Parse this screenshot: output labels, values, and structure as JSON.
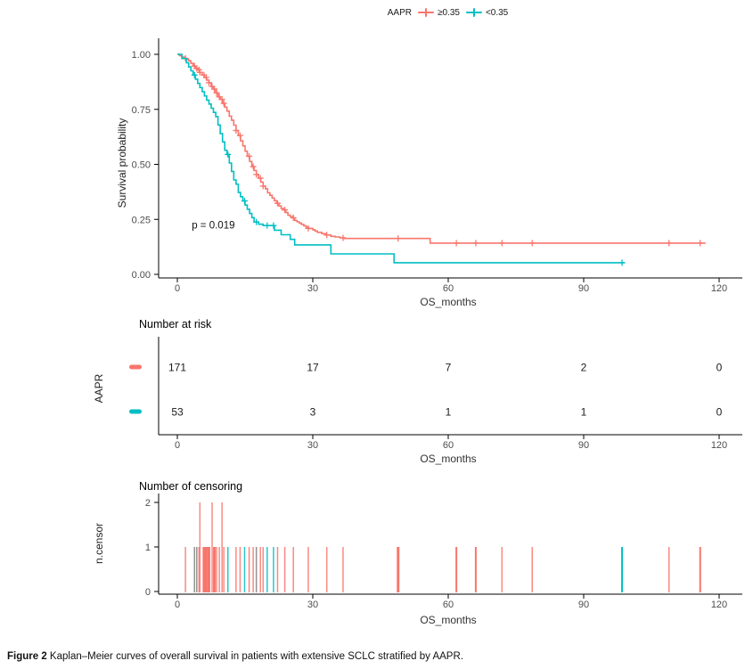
{
  "legend": {
    "title": "AAPR",
    "items": [
      {
        "label": "≥0.35",
        "color": "#F8766D"
      },
      {
        "label": "<0.35",
        "color": "#00BFC4"
      }
    ]
  },
  "colors": {
    "red": "#F8766D",
    "teal": "#00BFC4",
    "gray": "#808080",
    "axis": "#000000",
    "tick_text": "#4d4d4d"
  },
  "labels": {
    "km_ylabel": "Survival probability",
    "km_xlabel": "OS_months",
    "risk_title": "Number at risk",
    "risk_ylabel": "AAPR",
    "risk_xlabel": "OS_months",
    "censor_title": "Number of censoring",
    "censor_ylabel": "n.censor",
    "censor_xlabel": "OS_months"
  },
  "caption": {
    "label": "Figure 2",
    "text": " Kaplan–Meier curves of overall survival in patients with extensive SCLC stratified by AAPR."
  },
  "chart_data": [
    {
      "id": "km",
      "type": "line",
      "step": true,
      "xlabel": "OS_months",
      "ylabel": "Survival probability",
      "xticks": [
        0,
        30,
        60,
        90,
        120
      ],
      "ytick_labels": [
        "0.00",
        "0.25",
        "0.50",
        "0.75",
        "1.00"
      ],
      "ytick_values": [
        0,
        0.25,
        0.5,
        0.75,
        1
      ],
      "xlim": [
        0,
        125
      ],
      "ylim": [
        0,
        1
      ],
      "annotation": {
        "text": "p = 0.019",
        "x": 3.2,
        "y": 0.225
      },
      "series": [
        {
          "name": "≥0.35",
          "color": "#F8766D",
          "points": [
            [
              0,
              1.0
            ],
            [
              0.5,
              0.994
            ],
            [
              1,
              0.988
            ],
            [
              1.5,
              0.982
            ],
            [
              2,
              0.977
            ],
            [
              2.5,
              0.971
            ],
            [
              3,
              0.959
            ],
            [
              3.5,
              0.947
            ],
            [
              4,
              0.936
            ],
            [
              4.5,
              0.93
            ],
            [
              5,
              0.918
            ],
            [
              5.5,
              0.906
            ],
            [
              6,
              0.895
            ],
            [
              6.5,
              0.883
            ],
            [
              7,
              0.871
            ],
            [
              7.5,
              0.854
            ],
            [
              8,
              0.842
            ],
            [
              8.5,
              0.825
            ],
            [
              9,
              0.807
            ],
            [
              9.5,
              0.795
            ],
            [
              10,
              0.777
            ],
            [
              10.5,
              0.76
            ],
            [
              11,
              0.742
            ],
            [
              11.5,
              0.719
            ],
            [
              12,
              0.701
            ],
            [
              12.5,
              0.678
            ],
            [
              13,
              0.654
            ],
            [
              13.5,
              0.631
            ],
            [
              14,
              0.607
            ],
            [
              14.5,
              0.584
            ],
            [
              15,
              0.56
            ],
            [
              15.5,
              0.537
            ],
            [
              16,
              0.513
            ],
            [
              16.5,
              0.49
            ],
            [
              17,
              0.472
            ],
            [
              17.5,
              0.454
            ],
            [
              18,
              0.437
            ],
            [
              18.5,
              0.419
            ],
            [
              19,
              0.401
            ],
            [
              19.5,
              0.389
            ],
            [
              20,
              0.371
            ],
            [
              20.5,
              0.359
            ],
            [
              21,
              0.347
            ],
            [
              21.5,
              0.335
            ],
            [
              22,
              0.323
            ],
            [
              22.5,
              0.311
            ],
            [
              23,
              0.299
            ],
            [
              23.5,
              0.293
            ],
            [
              24,
              0.281
            ],
            [
              24.5,
              0.269
            ],
            [
              25,
              0.263
            ],
            [
              25.5,
              0.257
            ],
            [
              26,
              0.245
            ],
            [
              26.5,
              0.239
            ],
            [
              27,
              0.233
            ],
            [
              27.5,
              0.227
            ],
            [
              28,
              0.221
            ],
            [
              28.5,
              0.215
            ],
            [
              29,
              0.209
            ],
            [
              30,
              0.203
            ],
            [
              30.5,
              0.197
            ],
            [
              31,
              0.191
            ],
            [
              32,
              0.185
            ],
            [
              33,
              0.179
            ],
            [
              34,
              0.173
            ],
            [
              35,
              0.17
            ],
            [
              36,
              0.166
            ],
            [
              37,
              0.163
            ],
            [
              56,
              0.142
            ],
            [
              117,
              0.142
            ]
          ],
          "censors": [
            1.8,
            3.8,
            4.3,
            4.8,
            5.0,
            5.9,
            6.4,
            7.0,
            7.7,
            8.2,
            8.7,
            9.3,
            9.9,
            10.3,
            13.0,
            13.9,
            15.9,
            16.8,
            17.5,
            18.4,
            19.0,
            22.2,
            23.8,
            25.7,
            29.0,
            33.1,
            36.7,
            48.9,
            61.8,
            66.1,
            71.9,
            78.6,
            108.9,
            115.8
          ]
        },
        {
          "name": "<0.35",
          "color": "#00BFC4",
          "points": [
            [
              0,
              1.0
            ],
            [
              1,
              0.981
            ],
            [
              2,
              0.962
            ],
            [
              2.5,
              0.943
            ],
            [
              3,
              0.925
            ],
            [
              3.5,
              0.906
            ],
            [
              4,
              0.887
            ],
            [
              4.5,
              0.868
            ],
            [
              5,
              0.849
            ],
            [
              5.5,
              0.83
            ],
            [
              6,
              0.811
            ],
            [
              6.5,
              0.792
            ],
            [
              7,
              0.774
            ],
            [
              7.5,
              0.755
            ],
            [
              8,
              0.736
            ],
            [
              8.5,
              0.717
            ],
            [
              9,
              0.679
            ],
            [
              9.5,
              0.64
            ],
            [
              10,
              0.602
            ],
            [
              10.5,
              0.564
            ],
            [
              11,
              0.545
            ],
            [
              11.5,
              0.506
            ],
            [
              12,
              0.468
            ],
            [
              12.5,
              0.429
            ],
            [
              13,
              0.41
            ],
            [
              13.5,
              0.372
            ],
            [
              14,
              0.353
            ],
            [
              14.5,
              0.334
            ],
            [
              15,
              0.315
            ],
            [
              15.5,
              0.296
            ],
            [
              16,
              0.277
            ],
            [
              16.5,
              0.258
            ],
            [
              17,
              0.238
            ],
            [
              18,
              0.228
            ],
            [
              19,
              0.222
            ],
            [
              21,
              0.222
            ],
            [
              21.5,
              0.201
            ],
            [
              23,
              0.18
            ],
            [
              25,
              0.159
            ],
            [
              26,
              0.134
            ],
            [
              34,
              0.093
            ],
            [
              48,
              0.053
            ],
            [
              99,
              0.053
            ]
          ],
          "censors": [
            3.8,
            11.2,
            14.9,
            17.5,
            19.9,
            21.3,
            98.5
          ]
        }
      ]
    },
    {
      "id": "risk",
      "type": "table",
      "title": "Number at risk",
      "ylabel": "AAPR",
      "xlabel": "OS_months",
      "xticks": [
        0,
        30,
        60,
        90,
        120
      ],
      "rows": [
        {
          "group": "≥0.35",
          "color": "#F8766D",
          "values": [
            "171",
            "17",
            "7",
            "2",
            "0"
          ]
        },
        {
          "group": "<0.35",
          "color": "#00BFC4",
          "values": [
            "53",
            "3",
            "1",
            "1",
            "0"
          ]
        }
      ]
    },
    {
      "id": "censor",
      "type": "bar",
      "title": "Number of censoring",
      "ylabel": "n.censor",
      "xlabel": "OS_months",
      "xticks": [
        0,
        30,
        60,
        90,
        120
      ],
      "yticks": [
        0,
        1,
        2
      ],
      "bars": [
        {
          "x": 1.8,
          "h": 1,
          "c": "red"
        },
        {
          "x": 3.8,
          "h": 1,
          "c": "gray"
        },
        {
          "x": 4.3,
          "h": 1,
          "c": "gray"
        },
        {
          "x": 4.8,
          "h": 1,
          "c": "red"
        },
        {
          "x": 5.0,
          "h": 2,
          "c": "red"
        },
        {
          "x": 5.9,
          "h": 1,
          "c": "red",
          "w": 3
        },
        {
          "x": 6.4,
          "h": 1,
          "c": "red",
          "w": 3
        },
        {
          "x": 7.0,
          "h": 1,
          "c": "red",
          "w": 3
        },
        {
          "x": 7.7,
          "h": 2,
          "c": "red"
        },
        {
          "x": 8.2,
          "h": 1,
          "c": "red",
          "w": 3
        },
        {
          "x": 8.7,
          "h": 1,
          "c": "red"
        },
        {
          "x": 9.3,
          "h": 1,
          "c": "red"
        },
        {
          "x": 9.9,
          "h": 2,
          "c": "red"
        },
        {
          "x": 10.3,
          "h": 1,
          "c": "red"
        },
        {
          "x": 11.2,
          "h": 1,
          "c": "teal"
        },
        {
          "x": 13.0,
          "h": 1,
          "c": "red"
        },
        {
          "x": 13.9,
          "h": 1,
          "c": "red"
        },
        {
          "x": 14.9,
          "h": 1,
          "c": "teal"
        },
        {
          "x": 15.9,
          "h": 1,
          "c": "red"
        },
        {
          "x": 16.8,
          "h": 1,
          "c": "red"
        },
        {
          "x": 17.5,
          "h": 1,
          "c": "gray"
        },
        {
          "x": 18.4,
          "h": 1,
          "c": "red"
        },
        {
          "x": 19.0,
          "h": 1,
          "c": "red"
        },
        {
          "x": 19.9,
          "h": 1,
          "c": "teal"
        },
        {
          "x": 21.3,
          "h": 1,
          "c": "teal"
        },
        {
          "x": 22.2,
          "h": 1,
          "c": "red"
        },
        {
          "x": 23.8,
          "h": 1,
          "c": "red"
        },
        {
          "x": 25.7,
          "h": 1,
          "c": "red"
        },
        {
          "x": 29.0,
          "h": 1,
          "c": "red"
        },
        {
          "x": 33.1,
          "h": 1,
          "c": "red"
        },
        {
          "x": 36.7,
          "h": 1,
          "c": "red"
        },
        {
          "x": 48.9,
          "h": 1,
          "c": "red",
          "w": 3
        },
        {
          "x": 61.8,
          "h": 1,
          "c": "red",
          "w": 2
        },
        {
          "x": 66.1,
          "h": 1,
          "c": "red",
          "w": 2
        },
        {
          "x": 71.9,
          "h": 1,
          "c": "red"
        },
        {
          "x": 78.6,
          "h": 1,
          "c": "red"
        },
        {
          "x": 98.5,
          "h": 1,
          "c": "teal",
          "w": 2
        },
        {
          "x": 108.9,
          "h": 1,
          "c": "red"
        },
        {
          "x": 115.8,
          "h": 1,
          "c": "red",
          "w": 2
        }
      ]
    }
  ]
}
